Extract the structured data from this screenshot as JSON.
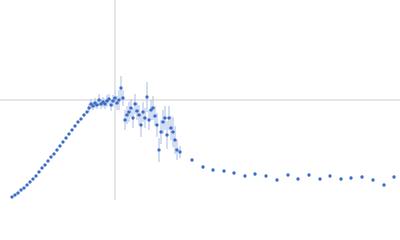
{
  "chart_data": {
    "type": "scatter",
    "color": "#3a6bc9",
    "error_color": "#a9bde6",
    "reference_line_color": "#cccccc",
    "xlim": [
      0,
      400
    ],
    "ylim": [
      0,
      200
    ],
    "reference_lines": {
      "x": 115,
      "y": 100
    },
    "x": [
      12,
      15,
      18,
      21,
      24,
      27,
      30,
      33,
      36,
      39,
      42,
      45,
      48,
      51,
      54,
      57,
      60,
      63,
      66,
      69,
      72,
      75,
      78,
      81,
      84,
      87,
      89,
      91,
      93,
      95,
      97,
      99,
      101,
      103,
      105,
      107,
      109,
      111,
      113,
      115,
      117,
      119,
      121,
      123,
      125,
      127,
      129,
      131,
      133,
      135,
      137,
      139,
      141,
      143,
      145,
      147,
      149,
      151,
      153,
      155,
      157,
      159,
      161,
      163,
      165,
      167,
      169,
      171,
      173,
      175,
      177,
      180,
      192,
      203,
      213,
      224,
      234,
      245,
      255,
      266,
      277,
      288,
      298,
      309,
      320,
      330,
      341,
      351,
      362,
      373,
      384,
      394
    ],
    "series": [
      {
        "values": [
          3,
          5,
          7,
          10,
          12,
          15,
          18,
          21,
          24,
          28,
          32,
          35,
          39,
          43,
          46,
          50,
          54,
          58,
          62,
          66,
          70,
          74,
          78,
          81,
          85,
          88,
          92,
          96,
          94,
          97,
          95,
          100,
          96,
          98,
          96,
          99,
          101,
          95,
          99,
          102,
          97,
          100,
          112,
          102,
          80,
          85,
          88,
          92,
          82,
          96,
          89,
          85,
          75,
          88,
          82,
          103,
          80,
          90,
          92,
          84,
          75,
          50,
          68,
          78,
          82,
          65,
          82,
          72,
          68,
          60,
          50,
          48,
          40,
          33,
          30,
          29,
          27,
          24,
          26,
          24,
          20,
          25,
          21,
          25,
          21,
          24,
          21,
          22,
          23,
          20,
          15,
          23
        ],
        "errors": [
          1,
          1,
          1,
          1,
          1,
          1,
          1,
          1,
          1,
          1,
          1,
          1,
          1,
          1,
          1,
          1,
          1,
          1,
          1,
          1,
          1,
          1,
          1,
          1,
          1,
          1,
          4,
          5,
          4,
          5,
          4,
          6,
          5,
          5,
          5,
          6,
          5,
          6,
          6,
          8,
          7,
          10,
          12,
          8,
          10,
          9,
          10,
          9,
          10,
          10,
          9,
          10,
          12,
          10,
          10,
          15,
          10,
          10,
          12,
          10,
          12,
          12,
          12,
          12,
          12,
          14,
          12,
          12,
          15,
          14,
          10,
          6,
          2,
          2,
          2,
          2,
          2,
          2,
          2,
          2,
          2,
          2,
          2,
          2,
          2,
          2,
          2,
          2,
          2,
          2,
          2,
          2
        ]
      }
    ]
  }
}
